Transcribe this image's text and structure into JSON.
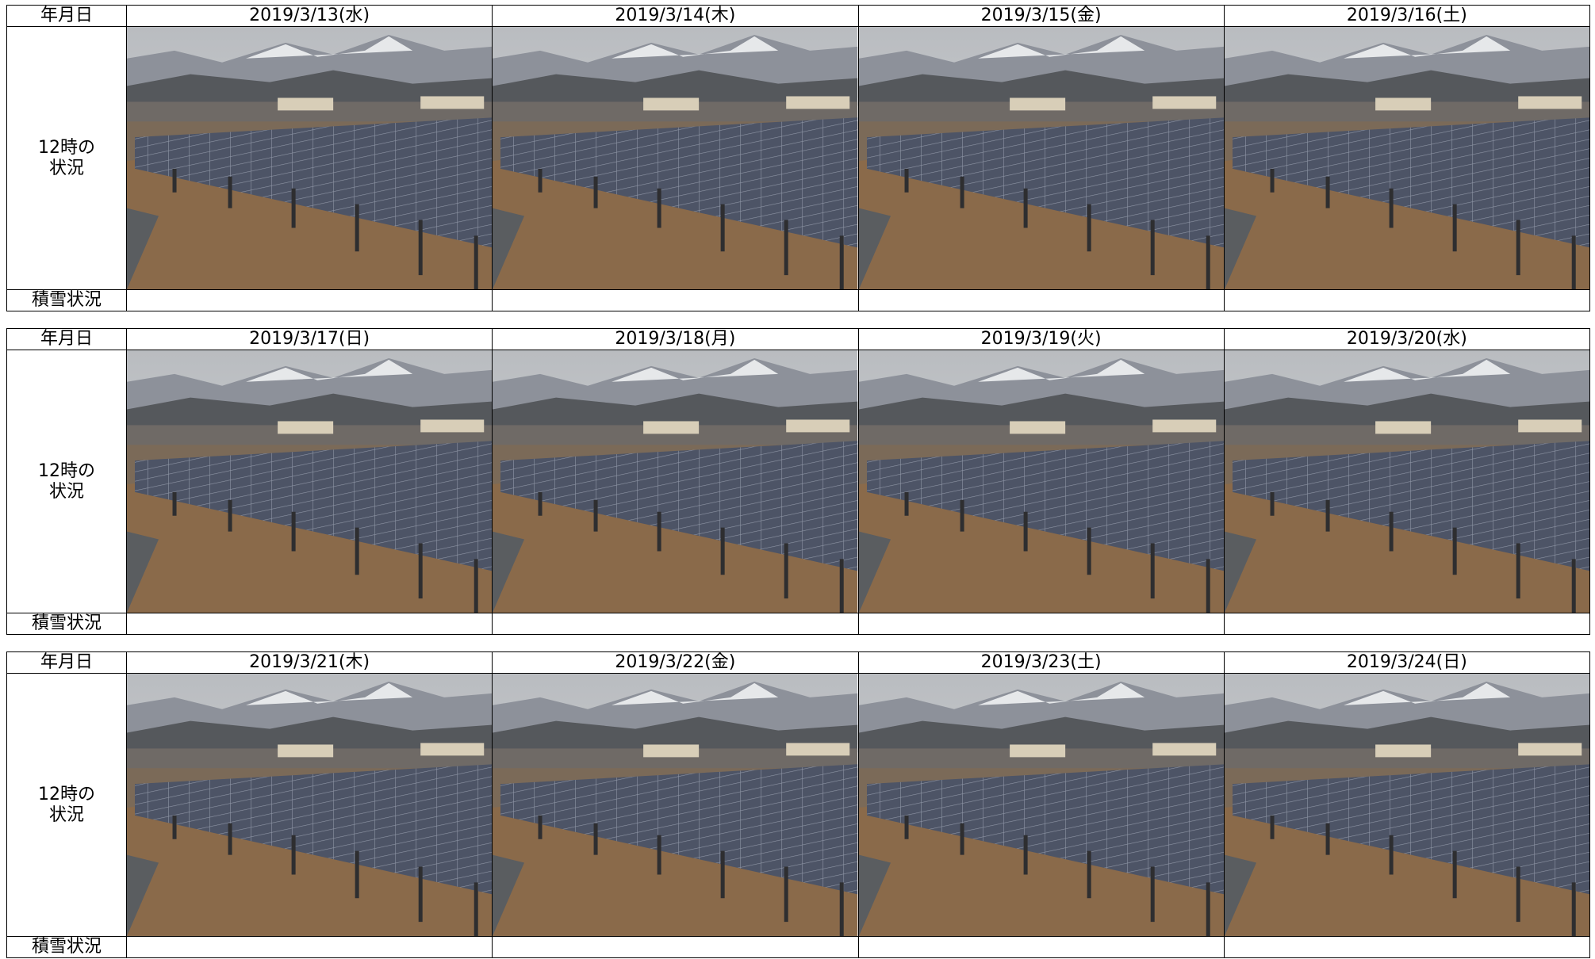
{
  "labels": {
    "date_header": "年月日",
    "image_label": "12時の\n状況",
    "snow_label": "積雪状況"
  },
  "blocks": [
    {
      "dates": [
        "2019/3/13(水)",
        "2019/3/14(木)",
        "2019/3/15(金)",
        "2019/3/16(土)"
      ]
    },
    {
      "dates": [
        "2019/3/17(日)",
        "2019/3/18(月)",
        "2019/3/19(火)",
        "2019/3/20(水)"
      ]
    },
    {
      "dates": [
        "2019/3/21(木)",
        "2019/3/22(金)",
        "2019/3/23(土)",
        "2019/3/24(日)"
      ]
    }
  ]
}
